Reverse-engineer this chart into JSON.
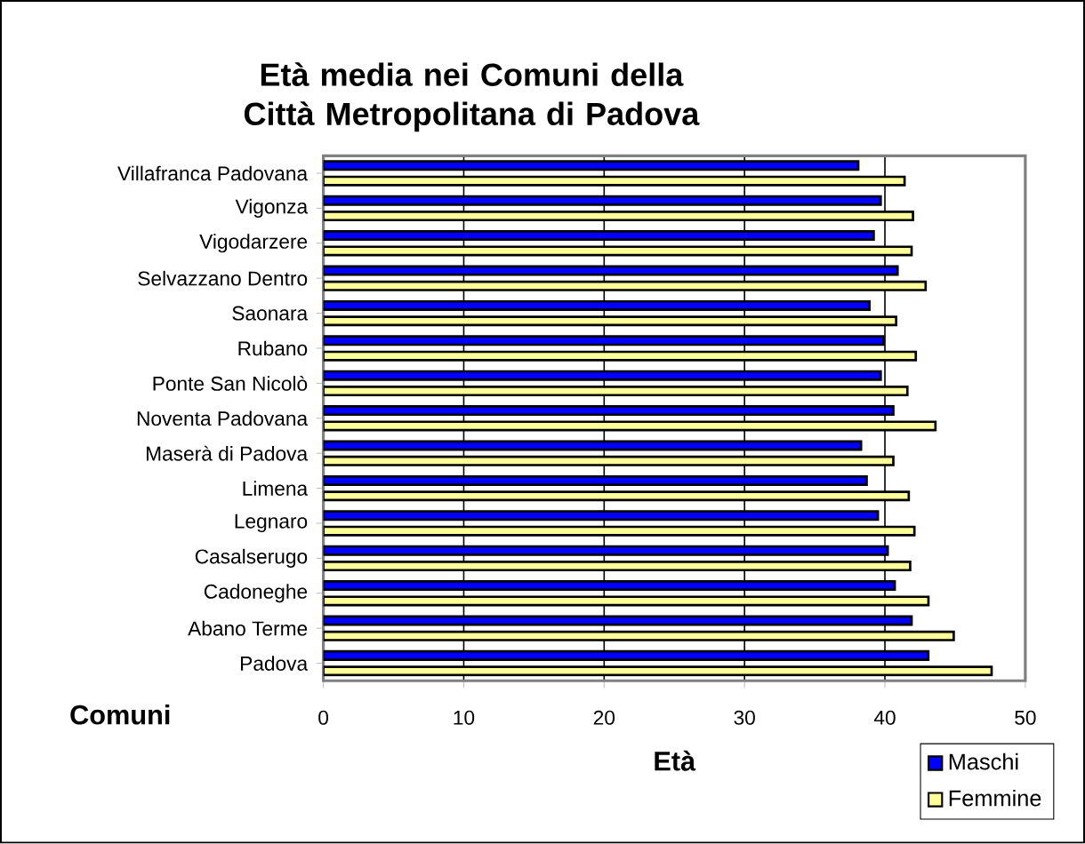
{
  "chart_data": {
    "type": "bar",
    "orientation": "horizontal",
    "title": "Età media nei Comuni della Città Metropolitana di Padova",
    "xlabel": "Età",
    "ylabel": "Comuni",
    "categories": [
      "Villafranca Padovana",
      "Vigonza",
      "Vigodarzere",
      "Selvazzano Dentro",
      "Saonara",
      "Rubano",
      "Ponte San Nicolò",
      "Noventa Padovana",
      "Maserà di Padova",
      "Limena",
      "Legnaro",
      "Casalserugo",
      "Cadoneghe",
      "Abano Terme",
      "Padova"
    ],
    "series": [
      {
        "name": "Maschi",
        "color": "#0000ff",
        "values": [
          38.1,
          39.7,
          39.2,
          40.9,
          38.9,
          39.9,
          39.7,
          40.6,
          38.3,
          38.7,
          39.5,
          40.2,
          40.7,
          41.9,
          43.1
        ]
      },
      {
        "name": "Femmine",
        "color": "#ffff99",
        "values": [
          41.4,
          42.0,
          41.9,
          42.9,
          40.8,
          42.2,
          41.6,
          43.6,
          40.6,
          41.7,
          42.1,
          41.8,
          43.1,
          44.9,
          47.6
        ]
      }
    ],
    "xlim": [
      0,
      50
    ],
    "xticks": [
      0,
      10,
      20,
      30,
      40,
      50
    ],
    "grid": "x",
    "legend": "bottom right"
  }
}
